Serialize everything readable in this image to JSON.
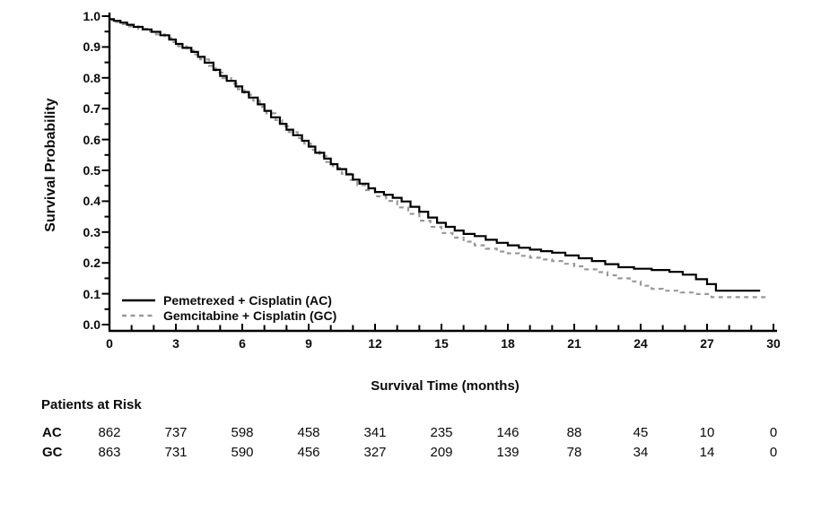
{
  "chart_data": {
    "type": "line",
    "subtype": "kaplan-meier-step",
    "title": "",
    "xlabel": "Survival Time (months)",
    "ylabel": "Survival Probability",
    "xlim": [
      0,
      30
    ],
    "ylim": [
      0.0,
      1.0
    ],
    "x_major_ticks": [
      0,
      3,
      6,
      9,
      12,
      15,
      18,
      21,
      24,
      27,
      30
    ],
    "x_minor_tick_step": 1,
    "y_major_tick_labels": [
      "1.0",
      "0.9",
      "0.8",
      "0.7",
      "0.6",
      "0.5",
      "0.4",
      "0.3",
      "0.2",
      "0.1",
      "0.0"
    ],
    "y_minor_tick_step": 0.05,
    "grid": false,
    "legend_position": "inside-lower-left",
    "series": [
      {
        "name": "Pemetrexed + Cisplatin (AC)",
        "abbr": "AC",
        "color": "#000000",
        "style": "solid",
        "points": [
          [
            0,
            0.99
          ],
          [
            0.2,
            0.985
          ],
          [
            0.5,
            0.979
          ],
          [
            0.8,
            0.972
          ],
          [
            1.1,
            0.965
          ],
          [
            1.5,
            0.957
          ],
          [
            1.9,
            0.949
          ],
          [
            2.3,
            0.938
          ],
          [
            2.7,
            0.924
          ],
          [
            3.0,
            0.91
          ],
          [
            3.3,
            0.897
          ],
          [
            3.7,
            0.884
          ],
          [
            4.0,
            0.868
          ],
          [
            4.3,
            0.849
          ],
          [
            4.7,
            0.826
          ],
          [
            5.0,
            0.806
          ],
          [
            5.3,
            0.79
          ],
          [
            5.7,
            0.772
          ],
          [
            6.0,
            0.754
          ],
          [
            6.3,
            0.736
          ],
          [
            6.7,
            0.714
          ],
          [
            7.0,
            0.693
          ],
          [
            7.3,
            0.672
          ],
          [
            7.7,
            0.651
          ],
          [
            8.0,
            0.632
          ],
          [
            8.3,
            0.614
          ],
          [
            8.7,
            0.596
          ],
          [
            9.0,
            0.577
          ],
          [
            9.3,
            0.557
          ],
          [
            9.7,
            0.538
          ],
          [
            10.0,
            0.52
          ],
          [
            10.3,
            0.504
          ],
          [
            10.7,
            0.487
          ],
          [
            11.0,
            0.47
          ],
          [
            11.3,
            0.457
          ],
          [
            11.7,
            0.442
          ],
          [
            12.0,
            0.43
          ],
          [
            12.4,
            0.421
          ],
          [
            12.8,
            0.411
          ],
          [
            13.2,
            0.399
          ],
          [
            13.6,
            0.382
          ],
          [
            14.0,
            0.366
          ],
          [
            14.4,
            0.347
          ],
          [
            14.8,
            0.33
          ],
          [
            15.2,
            0.317
          ],
          [
            15.6,
            0.305
          ],
          [
            16.0,
            0.294
          ],
          [
            16.5,
            0.287
          ],
          [
            17.0,
            0.275
          ],
          [
            17.5,
            0.265
          ],
          [
            18.0,
            0.257
          ],
          [
            18.5,
            0.249
          ],
          [
            19.0,
            0.243
          ],
          [
            19.5,
            0.238
          ],
          [
            20.0,
            0.233
          ],
          [
            20.6,
            0.224
          ],
          [
            21.2,
            0.215
          ],
          [
            21.8,
            0.206
          ],
          [
            22.4,
            0.196
          ],
          [
            23.0,
            0.186
          ],
          [
            23.7,
            0.181
          ],
          [
            24.5,
            0.177
          ],
          [
            25.3,
            0.171
          ],
          [
            25.9,
            0.162
          ],
          [
            26.5,
            0.147
          ],
          [
            27.0,
            0.131
          ],
          [
            27.4,
            0.11
          ],
          [
            29.4,
            0.11
          ]
        ]
      },
      {
        "name": "Gemcitabine + Cisplatin (GC)",
        "abbr": "GC",
        "color": "#999999",
        "style": "dashed",
        "points": [
          [
            0,
            0.988
          ],
          [
            0.3,
            0.981
          ],
          [
            0.6,
            0.974
          ],
          [
            0.9,
            0.967
          ],
          [
            1.3,
            0.959
          ],
          [
            1.7,
            0.95
          ],
          [
            2.1,
            0.941
          ],
          [
            2.5,
            0.929
          ],
          [
            2.8,
            0.916
          ],
          [
            3.1,
            0.902
          ],
          [
            3.5,
            0.889
          ],
          [
            3.8,
            0.876
          ],
          [
            4.1,
            0.86
          ],
          [
            4.5,
            0.839
          ],
          [
            4.8,
            0.817
          ],
          [
            5.1,
            0.799
          ],
          [
            5.5,
            0.781
          ],
          [
            5.8,
            0.763
          ],
          [
            6.1,
            0.745
          ],
          [
            6.5,
            0.726
          ],
          [
            6.8,
            0.706
          ],
          [
            7.1,
            0.685
          ],
          [
            7.5,
            0.663
          ],
          [
            7.8,
            0.643
          ],
          [
            8.1,
            0.624
          ],
          [
            8.5,
            0.605
          ],
          [
            8.8,
            0.587
          ],
          [
            9.1,
            0.567
          ],
          [
            9.5,
            0.546
          ],
          [
            9.8,
            0.527
          ],
          [
            10.1,
            0.508
          ],
          [
            10.5,
            0.489
          ],
          [
            10.9,
            0.469
          ],
          [
            11.2,
            0.452
          ],
          [
            11.6,
            0.436
          ],
          [
            12.0,
            0.416
          ],
          [
            12.5,
            0.401
          ],
          [
            13.0,
            0.38
          ],
          [
            13.5,
            0.359
          ],
          [
            14.0,
            0.337
          ],
          [
            14.5,
            0.317
          ],
          [
            15.0,
            0.297
          ],
          [
            15.5,
            0.282
          ],
          [
            16.0,
            0.269
          ],
          [
            16.5,
            0.257
          ],
          [
            17.0,
            0.246
          ],
          [
            17.5,
            0.237
          ],
          [
            18.0,
            0.231
          ],
          [
            18.5,
            0.223
          ],
          [
            19.0,
            0.217
          ],
          [
            19.5,
            0.211
          ],
          [
            20.0,
            0.206
          ],
          [
            20.5,
            0.197
          ],
          [
            21.0,
            0.189
          ],
          [
            21.5,
            0.179
          ],
          [
            22.0,
            0.17
          ],
          [
            22.5,
            0.16
          ],
          [
            23.0,
            0.15
          ],
          [
            23.5,
            0.14
          ],
          [
            24.0,
            0.126
          ],
          [
            24.5,
            0.116
          ],
          [
            25.0,
            0.11
          ],
          [
            25.8,
            0.104
          ],
          [
            26.4,
            0.099
          ],
          [
            27.2,
            0.089
          ],
          [
            29.8,
            0.089
          ]
        ]
      }
    ]
  },
  "risk_table": {
    "title": "Patients at Risk",
    "time_points": [
      0,
      3,
      6,
      9,
      12,
      15,
      18,
      21,
      24,
      27,
      30
    ],
    "rows": [
      {
        "label": "AC",
        "counts": [
          "862",
          "737",
          "598",
          "458",
          "341",
          "235",
          "146",
          "88",
          "45",
          "10",
          "0"
        ]
      },
      {
        "label": "GC",
        "counts": [
          "863",
          "731",
          "590",
          "456",
          "327",
          "209",
          "139",
          "78",
          "34",
          "14",
          "0"
        ]
      }
    ]
  },
  "colors": {
    "ac_line": "#000000",
    "gc_line": "#999999",
    "axis": "#000000",
    "background": "#ffffff",
    "text": "#0a0a0a"
  }
}
